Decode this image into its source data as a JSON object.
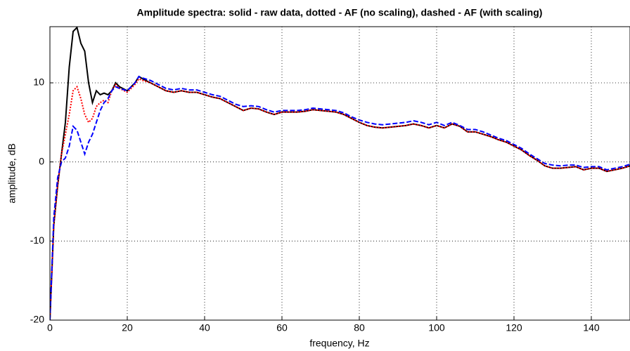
{
  "chart_data": {
    "type": "line",
    "title": "Amplitude spectra: solid - raw data, dotted - AF (no scaling), dashed - AF (with scaling)",
    "x_label": "frequency, Hz",
    "y_label": "amplitude, dB",
    "xlim": [
      0,
      150
    ],
    "ylim": [
      -20,
      17.1
    ],
    "xticks": [
      0,
      20,
      40,
      60,
      80,
      100,
      120,
      140
    ],
    "yticks": [
      -20,
      -10,
      0,
      10
    ],
    "grid": true,
    "x": [
      0,
      1,
      2,
      3,
      4,
      5,
      6,
      7,
      8,
      9,
      10,
      11,
      12,
      13,
      14,
      15,
      16,
      17,
      18,
      20,
      22,
      23,
      24,
      26,
      28,
      30,
      32,
      34,
      36,
      38,
      40,
      42,
      44,
      46,
      48,
      50,
      52,
      54,
      56,
      58,
      60,
      62,
      64,
      66,
      68,
      70,
      72,
      74,
      76,
      78,
      80,
      82,
      84,
      86,
      88,
      90,
      92,
      94,
      96,
      98,
      100,
      102,
      104,
      106,
      108,
      110,
      112,
      114,
      116,
      118,
      120,
      122,
      124,
      126,
      128,
      130,
      132,
      134,
      136,
      138,
      140,
      142,
      144,
      146,
      148,
      150
    ],
    "series": [
      {
        "color": "#000000",
        "dash": "solid",
        "values": [
          -20,
          -8,
          -3,
          1,
          5,
          12,
          16.5,
          17,
          15,
          14,
          10,
          7.5,
          9,
          8.5,
          8.7,
          8.5,
          9,
          10,
          9.5,
          9,
          10,
          10.8,
          10.5,
          10,
          9.5,
          9,
          8.8,
          9,
          8.8,
          8.8,
          8.5,
          8.2,
          8,
          7.5,
          7,
          6.5,
          6.8,
          6.7,
          6.3,
          6,
          6.3,
          6.3,
          6.3,
          6.4,
          6.6,
          6.5,
          6.4,
          6.3,
          6,
          5.5,
          5,
          4.6,
          4.4,
          4.3,
          4.4,
          4.5,
          4.6,
          4.8,
          4.6,
          4.3,
          4.6,
          4.3,
          4.8,
          4.5,
          3.8,
          3.8,
          3.5,
          3.2,
          2.8,
          2.5,
          2,
          1.5,
          0.8,
          0.2,
          -0.5,
          -0.8,
          -0.8,
          -0.7,
          -0.6,
          -1,
          -0.8,
          -0.8,
          -1.2,
          -1,
          -0.8,
          -0.5
        ]
      },
      {
        "color": "#ff0000",
        "dash": "dotted",
        "values": [
          -20,
          -8,
          -3,
          1,
          3.5,
          6,
          9,
          9.5,
          8,
          6,
          5,
          5.5,
          7,
          7.5,
          7.8,
          7.5,
          9,
          9.8,
          9.3,
          8.8,
          9.8,
          10.5,
          10.3,
          10,
          9.5,
          9,
          8.8,
          9,
          8.8,
          8.8,
          8.5,
          8.2,
          8,
          7.5,
          7,
          6.5,
          6.8,
          6.7,
          6.3,
          6,
          6.3,
          6.3,
          6.3,
          6.4,
          6.6,
          6.5,
          6.4,
          6.3,
          6,
          5.5,
          5,
          4.6,
          4.4,
          4.3,
          4.4,
          4.5,
          4.6,
          4.8,
          4.6,
          4.3,
          4.6,
          4.3,
          4.8,
          4.5,
          3.8,
          3.8,
          3.5,
          3.2,
          2.8,
          2.5,
          2,
          1.5,
          0.8,
          0.2,
          -0.5,
          -0.8,
          -0.8,
          -0.7,
          -0.6,
          -1,
          -0.8,
          -0.8,
          -1.2,
          -1,
          -0.8,
          -0.5
        ]
      },
      {
        "color": "#0000ff",
        "dash": "dashed",
        "values": [
          -20,
          -7,
          -2,
          0,
          0.5,
          2,
          4.5,
          4,
          2.5,
          1,
          2.5,
          3.5,
          5,
          6.5,
          7.5,
          8,
          9,
          9.5,
          9.3,
          9,
          10,
          10.8,
          10.6,
          10.3,
          9.8,
          9.3,
          9.1,
          9.3,
          9.1,
          9.1,
          8.8,
          8.5,
          8.3,
          7.8,
          7.3,
          7,
          7.1,
          7,
          6.6,
          6.3,
          6.5,
          6.5,
          6.5,
          6.6,
          6.8,
          6.7,
          6.6,
          6.5,
          6.2,
          5.7,
          5.3,
          5,
          4.8,
          4.7,
          4.8,
          4.9,
          5,
          5.2,
          5,
          4.7,
          5,
          4.6,
          5,
          4.6,
          4.1,
          4.1,
          3.8,
          3.4,
          3,
          2.7,
          2.2,
          1.7,
          1,
          0.4,
          -0.2,
          -0.4,
          -0.5,
          -0.4,
          -0.4,
          -0.7,
          -0.6,
          -0.6,
          -1,
          -0.8,
          -0.6,
          -0.3
        ]
      }
    ]
  }
}
